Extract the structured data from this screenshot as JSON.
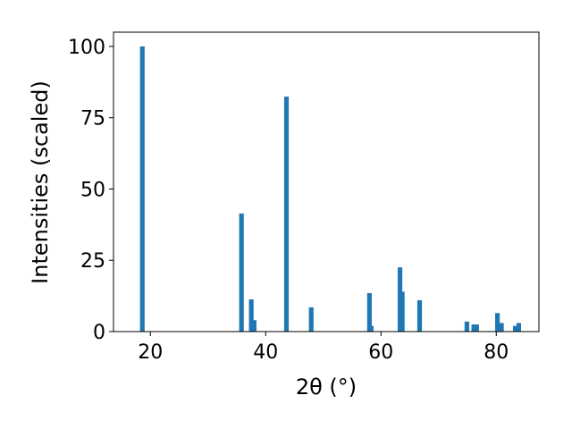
{
  "chart_data": {
    "type": "bar",
    "xlabel": "2θ (°)",
    "ylabel": "Intensities (scaled)",
    "x": [
      18.6,
      35.8,
      37.5,
      38.0,
      43.6,
      47.9,
      58.0,
      58.3,
      63.3,
      63.7,
      66.7,
      74.9,
      76.1,
      76.6,
      80.2,
      80.9,
      83.3,
      83.9
    ],
    "values": [
      100,
      41.4,
      11.3,
      4,
      82.4,
      8.5,
      13.5,
      2,
      22.5,
      14,
      11,
      3.5,
      2.5,
      2.5,
      6.5,
      3,
      2,
      3
    ],
    "color": "#1f77b4",
    "xlim": [
      13.6,
      87.4
    ],
    "xticks": [
      20,
      40,
      60,
      80
    ],
    "ylim": [
      0,
      105
    ],
    "yticks": [
      0,
      25,
      50,
      75,
      100
    ]
  }
}
